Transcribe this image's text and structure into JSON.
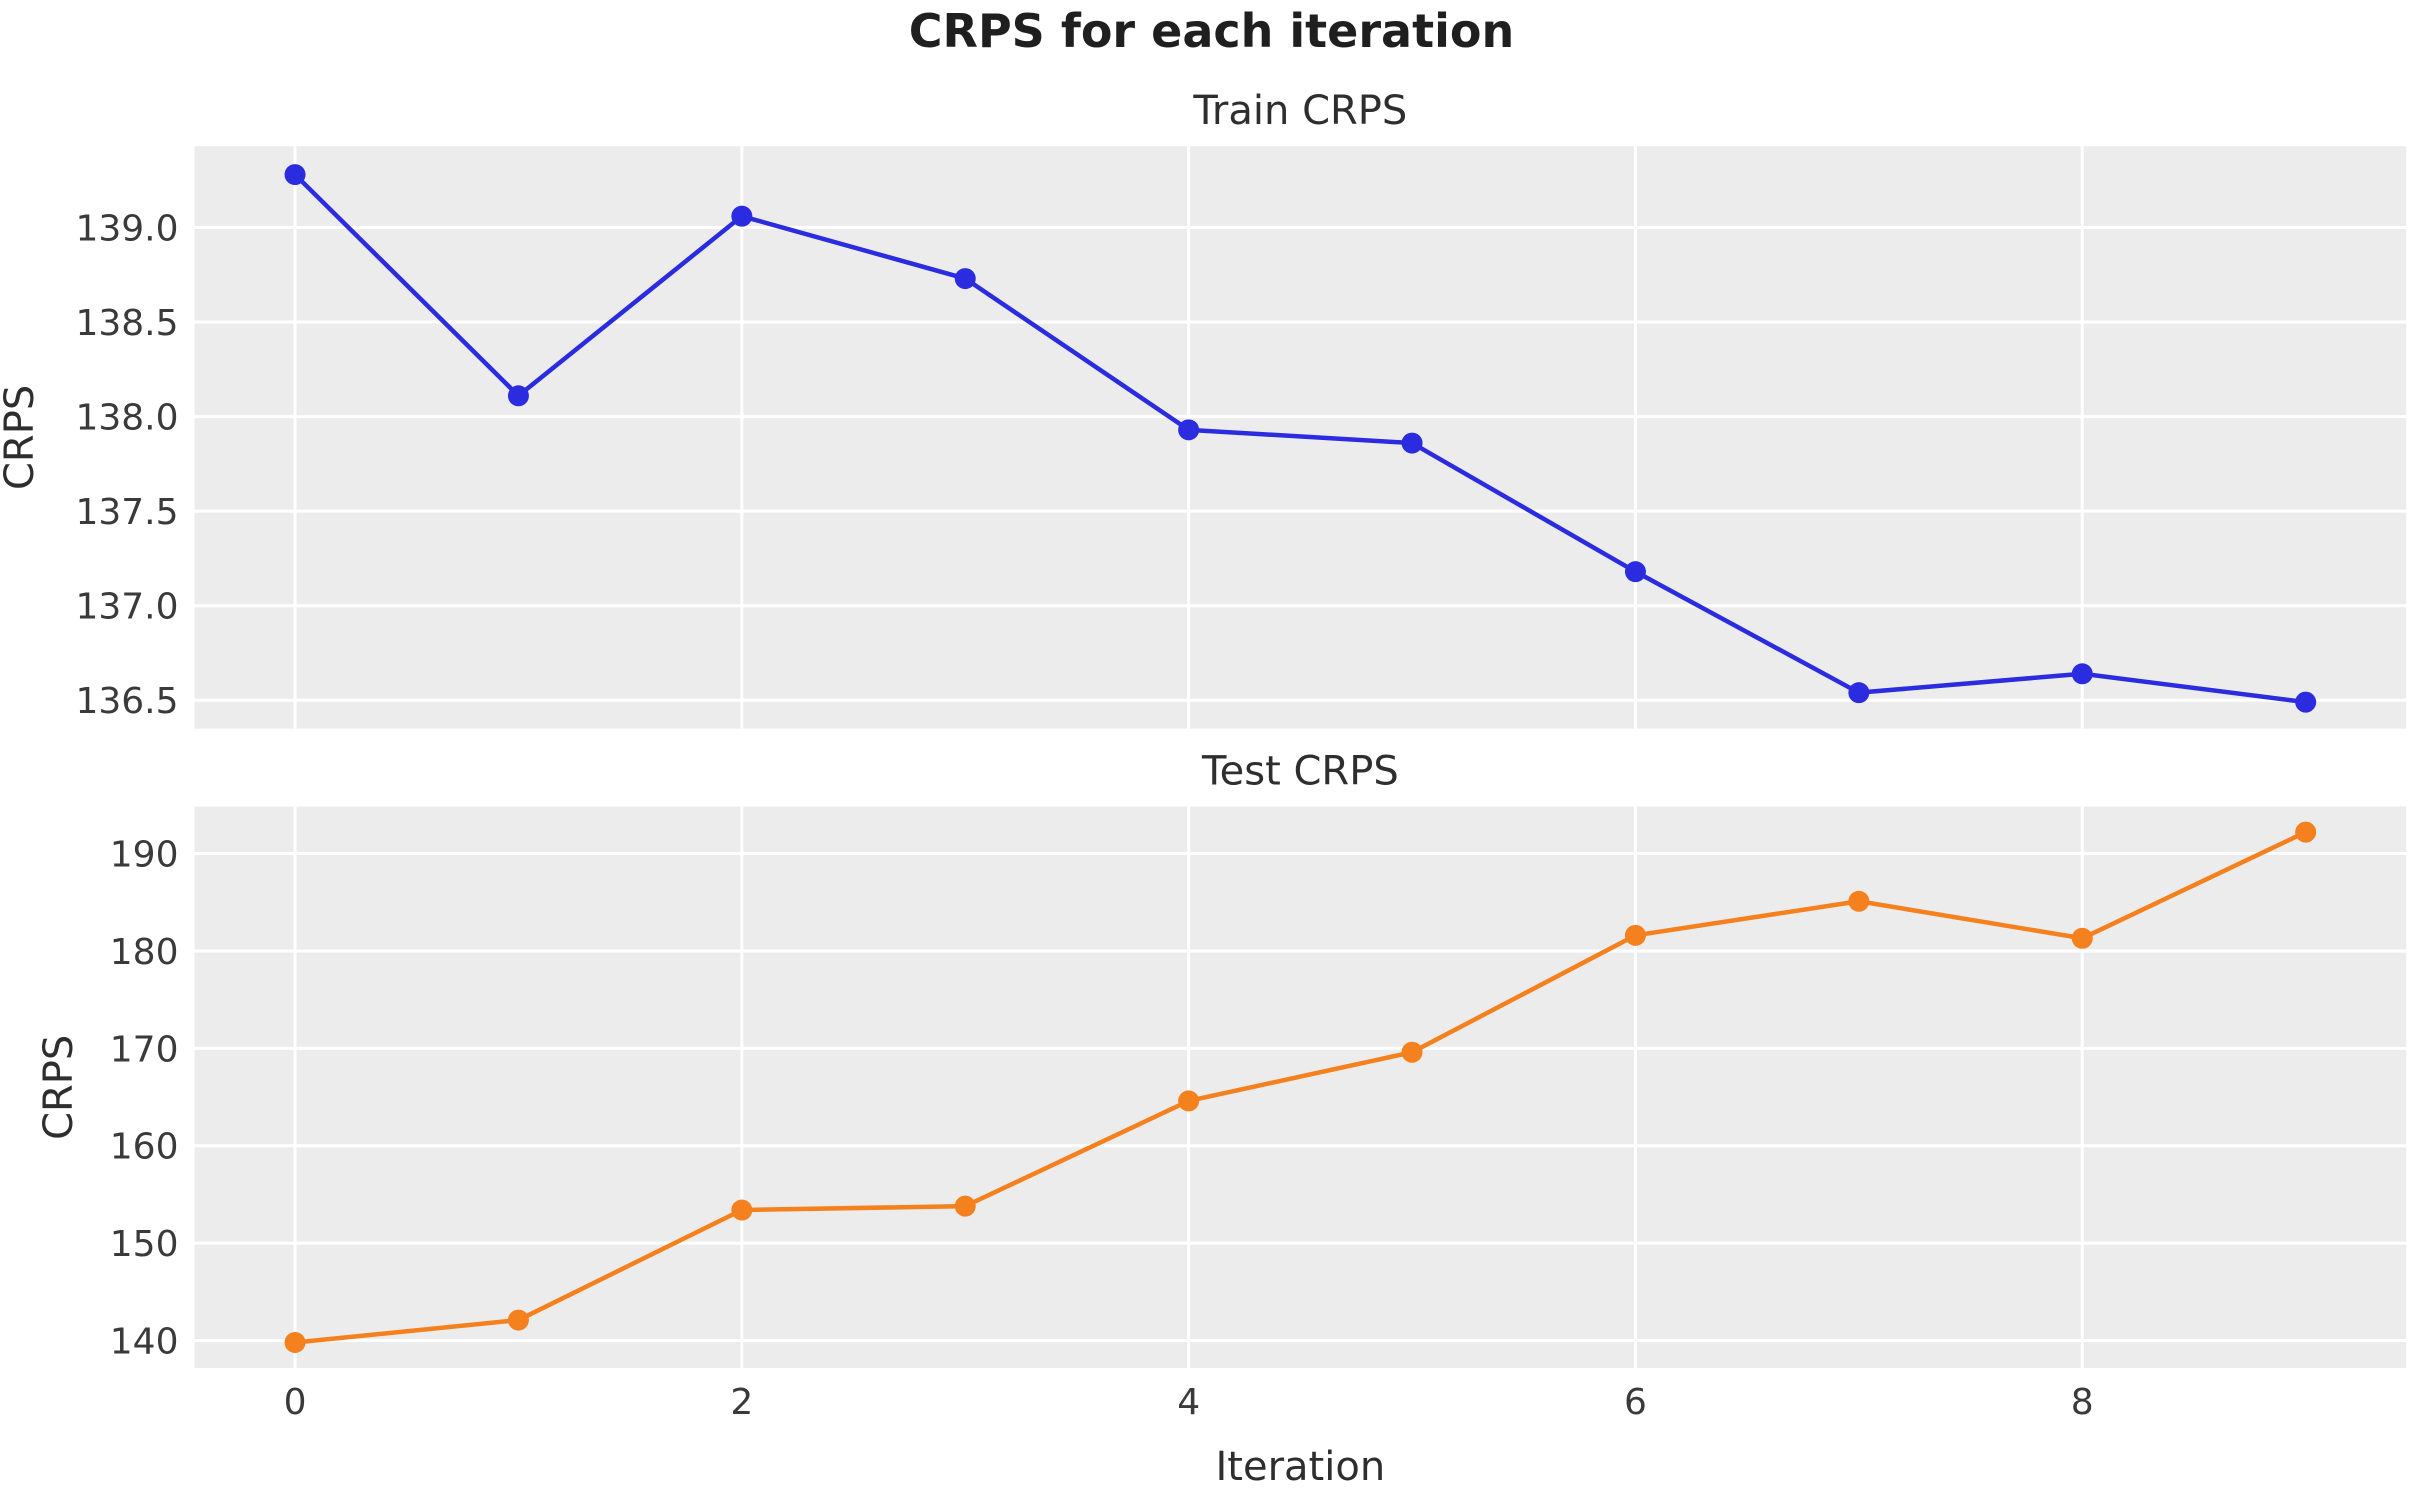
{
  "suptitle": "CRPS for each iteration",
  "figure": {
    "background": "#ffffff",
    "axes_background": "#ececec",
    "grid_color": "#ffffff",
    "tick_color": "#3a3a3a",
    "title_color": "#2e2e2e"
  },
  "chart_data": [
    {
      "type": "line",
      "title": "Train CRPS",
      "xlabel": "",
      "ylabel": "CRPS",
      "grid": true,
      "legend": "none",
      "x": [
        0,
        1,
        2,
        3,
        4,
        5,
        6,
        7,
        8,
        9
      ],
      "series": [
        {
          "name": "Train CRPS",
          "color": "#2b2be0",
          "values": [
            139.28,
            138.11,
            139.06,
            138.73,
            137.93,
            137.86,
            137.18,
            136.54,
            136.64,
            136.49
          ]
        }
      ],
      "xlim": [
        -0.45,
        9.45
      ],
      "ylim": [
        136.35,
        139.43
      ],
      "xtick_values": [
        0,
        2,
        4,
        6,
        8
      ],
      "xtick_labels": [],
      "ytick_values": [
        139.0,
        138.5,
        138.0,
        137.5,
        137.0,
        136.5
      ],
      "ytick_labels": [
        "139.0",
        "138.5",
        "138.0",
        "137.5",
        "137.0",
        "136.5"
      ]
    },
    {
      "type": "line",
      "title": "Test CRPS",
      "xlabel": "Iteration",
      "ylabel": "CRPS",
      "grid": true,
      "legend": "none",
      "x": [
        0,
        1,
        2,
        3,
        4,
        5,
        6,
        7,
        8,
        9
      ],
      "series": [
        {
          "name": "Test CRPS",
          "color": "#f5801e",
          "values": [
            139.8,
            142.1,
            153.4,
            153.8,
            164.6,
            169.6,
            181.6,
            185.1,
            181.3,
            192.2
          ]
        }
      ],
      "xlim": [
        -0.45,
        9.45
      ],
      "ylim": [
        137.18,
        194.82
      ],
      "xtick_values": [
        0,
        2,
        4,
        6,
        8
      ],
      "xtick_labels": [
        "0",
        "2",
        "4",
        "6",
        "8"
      ],
      "ytick_values": [
        190,
        180,
        170,
        160,
        150,
        140
      ],
      "ytick_labels": [
        "190",
        "180",
        "170",
        "160",
        "150",
        "140"
      ]
    }
  ]
}
